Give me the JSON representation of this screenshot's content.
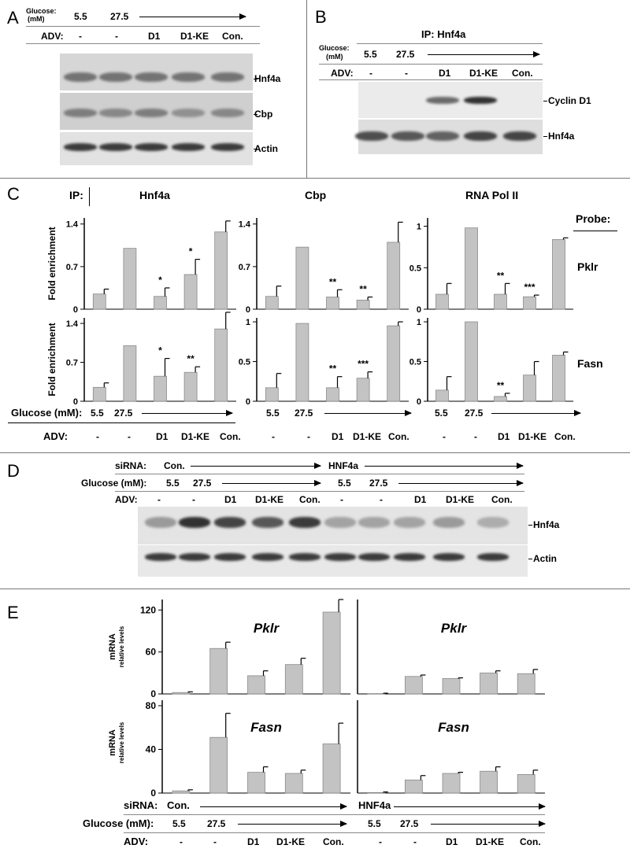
{
  "panels": {
    "a": "A",
    "b": "B",
    "c": "C",
    "d": "D",
    "e": "E"
  },
  "common": {
    "glucose_label": "Glucose:",
    "glucose_unit": "(mM)",
    "glucose_mm_label": "Glucose (mM):",
    "adv_label": "ADV:",
    "sirna_label": "siRNA:",
    "g_low": "5.5",
    "g_high": "27.5",
    "adv": [
      "-",
      "-",
      "D1",
      "D1-KE",
      "Con."
    ]
  },
  "panel_a": {
    "bands": [
      "Hnf4a",
      "Cbp",
      "Actin"
    ],
    "band_intensity": {
      "Hnf4a": [
        0.55,
        0.55,
        0.55,
        0.55,
        0.55
      ],
      "Cbp": [
        0.5,
        0.45,
        0.5,
        0.4,
        0.45
      ],
      "Actin": [
        0.85,
        0.85,
        0.85,
        0.85,
        0.85
      ]
    }
  },
  "panel_b": {
    "ip_title": "IP: Hnf4a",
    "bands": [
      "Cyclin D1",
      "Hnf4a"
    ],
    "band_intensity": {
      "Cyclin D1": [
        0,
        0,
        0.6,
        0.9,
        0
      ],
      "Hnf4a": [
        0.75,
        0.7,
        0.65,
        0.8,
        0.8
      ]
    }
  },
  "panel_c": {
    "ip_label": "IP:",
    "probe_label": "Probe:",
    "ylabel": "Fold enrichment",
    "glucose_mm_label": "Glucose (mM):"
  },
  "panel_d": {
    "sirna": [
      "Con.",
      "HNF4a"
    ],
    "bands": [
      "Hnf4a",
      "Actin"
    ],
    "band_intensity": {
      "Hnf4a": [
        0.35,
        0.9,
        0.8,
        0.7,
        0.85,
        0.3,
        0.3,
        0.3,
        0.35,
        0.25
      ],
      "Actin": [
        0.85,
        0.85,
        0.85,
        0.85,
        0.85,
        0.85,
        0.85,
        0.85,
        0.85,
        0.85
      ]
    }
  },
  "panel_e": {
    "ylabel_main": "mRNA",
    "ylabel_sub": "relative levels",
    "sirna": [
      "Con.",
      "HNF4a"
    ]
  },
  "chart_data": [
    {
      "type": "bar",
      "panel": "C",
      "ip": "Hnf4a",
      "probe": "Pklr",
      "ylabel": "Fold enrichment",
      "categories": [
        "-",
        "-",
        "D1",
        "D1-KE",
        "Con."
      ],
      "values": [
        0.25,
        1.0,
        0.21,
        0.57,
        1.27
      ],
      "errors": [
        0.08,
        0,
        0.14,
        0.25,
        0.18
      ],
      "significance": [
        "",
        "",
        "*",
        "*",
        ""
      ],
      "yticks": [
        0,
        0.7,
        1.4
      ],
      "ylim": [
        0,
        1.5
      ]
    },
    {
      "type": "bar",
      "panel": "C",
      "ip": "Cbp",
      "probe": "Pklr",
      "categories": [
        "-",
        "-",
        "D1",
        "D1-KE",
        "Con."
      ],
      "values": [
        0.21,
        1.02,
        0.2,
        0.15,
        1.1
      ],
      "errors": [
        0.17,
        0,
        0.12,
        0.05,
        0.33
      ],
      "significance": [
        "",
        "",
        "**",
        "**",
        ""
      ],
      "yticks": [
        0,
        0.7,
        1.4
      ],
      "ylim": [
        0,
        1.5
      ]
    },
    {
      "type": "bar",
      "panel": "C",
      "ip": "RNA Pol II",
      "probe": "Pklr",
      "categories": [
        "-",
        "-",
        "D1",
        "D1-KE",
        "Con."
      ],
      "values": [
        0.18,
        0.98,
        0.18,
        0.15,
        0.84
      ],
      "errors": [
        0.13,
        0,
        0.13,
        0.02,
        0.02
      ],
      "significance": [
        "",
        "",
        "**",
        "***",
        ""
      ],
      "yticks": [
        0,
        0.5,
        1
      ],
      "ylim": [
        0,
        1.1
      ]
    },
    {
      "type": "bar",
      "panel": "C",
      "ip": "Hnf4a",
      "probe": "Fasn",
      "ylabel": "Fold enrichment",
      "categories": [
        "-",
        "-",
        "D1",
        "D1-KE",
        "Con."
      ],
      "values": [
        0.25,
        1.0,
        0.45,
        0.52,
        1.3
      ],
      "errors": [
        0.08,
        0,
        0.32,
        0.1,
        0.3
      ],
      "significance": [
        "",
        "",
        "*",
        "**",
        ""
      ],
      "yticks": [
        0,
        0.7,
        1.4
      ],
      "ylim": [
        0,
        1.5
      ]
    },
    {
      "type": "bar",
      "panel": "C",
      "ip": "Cbp",
      "probe": "Fasn",
      "categories": [
        "-",
        "-",
        "D1",
        "D1-KE",
        "Con."
      ],
      "values": [
        0.17,
        0.98,
        0.17,
        0.29,
        0.95
      ],
      "errors": [
        0.18,
        0,
        0.14,
        0.08,
        0.05
      ],
      "significance": [
        "",
        "",
        "**",
        "***",
        ""
      ],
      "yticks": [
        0,
        0.5,
        1
      ],
      "ylim": [
        0,
        1.05
      ]
    },
    {
      "type": "bar",
      "panel": "C",
      "ip": "RNA Pol II",
      "probe": "Fasn",
      "categories": [
        "-",
        "-",
        "D1",
        "D1-KE",
        "Con."
      ],
      "values": [
        0.14,
        1.0,
        0.06,
        0.33,
        0.58
      ],
      "errors": [
        0.17,
        0,
        0.04,
        0.17,
        0.04
      ],
      "significance": [
        "",
        "",
        "**",
        "",
        ""
      ],
      "yticks": [
        0,
        0.5,
        1
      ],
      "ylim": [
        0,
        1.05
      ]
    },
    {
      "type": "bar",
      "panel": "E",
      "sirna": "Con.",
      "gene": "Pklr",
      "ylabel": "mRNA relative levels",
      "categories": [
        "-",
        "-",
        "D1",
        "D1-KE",
        "Con."
      ],
      "values": [
        2,
        65,
        26,
        42,
        117
      ],
      "errors": [
        1,
        9,
        7,
        9,
        18
      ],
      "yticks": [
        0,
        60,
        120
      ],
      "ylim": [
        0,
        135
      ]
    },
    {
      "type": "bar",
      "panel": "E",
      "sirna": "HNF4a",
      "gene": "Pklr",
      "categories": [
        "-",
        "-",
        "D1",
        "D1-KE",
        "Con."
      ],
      "values": [
        0.5,
        25,
        22,
        30,
        29
      ],
      "errors": [
        0.5,
        2,
        1,
        3,
        6
      ],
      "yticks": [],
      "ylim": [
        0,
        135
      ]
    },
    {
      "type": "bar",
      "panel": "E",
      "sirna": "Con.",
      "gene": "Fasn",
      "ylabel": "mRNA relative levels",
      "categories": [
        "-",
        "-",
        "D1",
        "D1-KE",
        "Con."
      ],
      "values": [
        2,
        51,
        19,
        18,
        45
      ],
      "errors": [
        1,
        22,
        5,
        3,
        19
      ],
      "yticks": [
        0,
        40,
        80
      ],
      "ylim": [
        0,
        85
      ]
    },
    {
      "type": "bar",
      "panel": "E",
      "sirna": "HNF4a",
      "gene": "Fasn",
      "categories": [
        "-",
        "-",
        "D1",
        "D1-KE",
        "Con."
      ],
      "values": [
        0.5,
        12,
        18,
        20,
        17
      ],
      "errors": [
        0.5,
        4,
        1,
        4,
        4
      ],
      "yticks": [],
      "ylim": [
        0,
        85
      ]
    }
  ]
}
